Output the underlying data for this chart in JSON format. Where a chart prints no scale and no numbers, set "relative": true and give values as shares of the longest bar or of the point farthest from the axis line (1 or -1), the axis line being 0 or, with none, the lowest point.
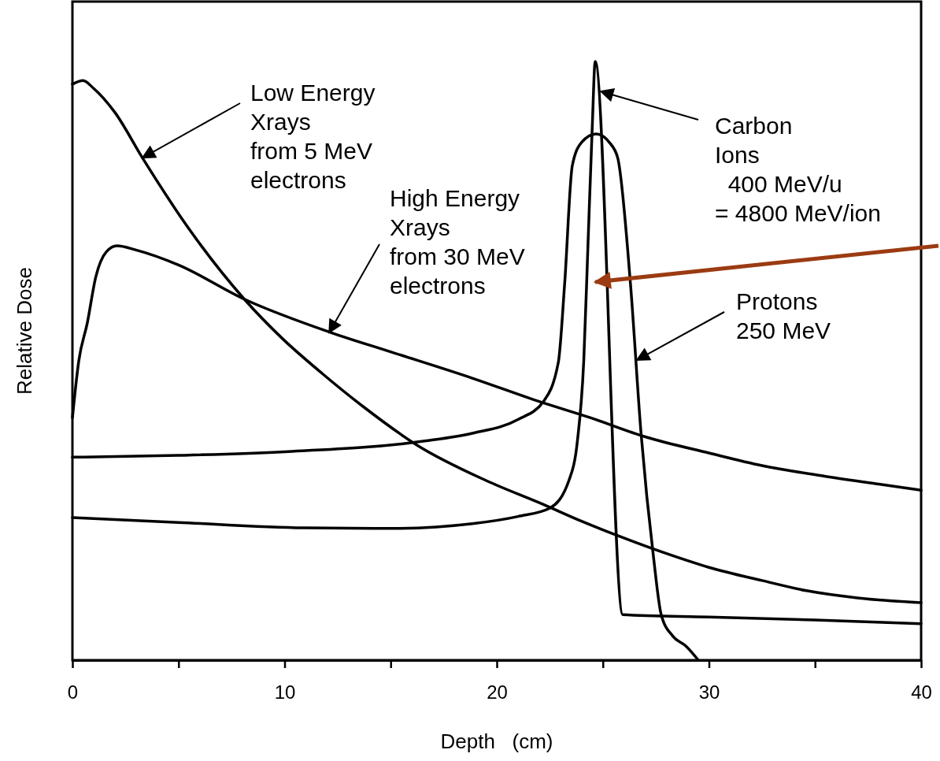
{
  "chart_data": {
    "type": "line",
    "relative": true,
    "xlabel": "Depth   (cm)",
    "ylabel": "Relative Dose",
    "xlim": [
      0,
      40
    ],
    "xticks": [
      0,
      {
        "value": 5,
        "label": null
      },
      10,
      {
        "value": 15,
        "label": null
      },
      20,
      {
        "value": 25,
        "label": null
      },
      30,
      {
        "value": 35,
        "label": null
      },
      40
    ],
    "marker": "none",
    "line_style": "solid",
    "series": [
      {
        "color": "#000000",
        "x": [
          0,
          0.5,
          1.0,
          2.0,
          3.3,
          5.5,
          8.1,
          9.9,
          11.8,
          13.65,
          16.25,
          19.5,
          22.2,
          24,
          25.7,
          28,
          30,
          32.5,
          34.6,
          37,
          40
        ],
        "values": [
          0.962,
          0.968,
          0.955,
          0.915,
          0.839,
          0.72,
          0.603,
          0.537,
          0.478,
          0.425,
          0.359,
          0.3,
          0.26,
          0.232,
          0.208,
          0.178,
          0.155,
          0.133,
          0.116,
          0.104,
          0.096
        ]
      },
      {
        "color": "#000000",
        "x": [
          0,
          0.3,
          0.7,
          1.1,
          1.6,
          2.1,
          3,
          5,
          8.1,
          12.2,
          15,
          18.85,
          22,
          24.4,
          27,
          30,
          32.5,
          35.5,
          38,
          40
        ],
        "values": [
          0.405,
          0.5,
          0.563,
          0.64,
          0.682,
          0.692,
          0.685,
          0.66,
          0.603,
          0.547,
          0.515,
          0.471,
          0.432,
          0.405,
          0.373,
          0.346,
          0.325,
          0.307,
          0.294,
          0.284
        ]
      },
      {
        "color": "#000000",
        "x": [
          0,
          5,
          10,
          16.6,
          18.85,
          21,
          22.2,
          22.9,
          23.2,
          23.56,
          24,
          24.68,
          25.3,
          25.7,
          26.3,
          26.8,
          27.4,
          27.75,
          28.3,
          28.9,
          29.5
        ],
        "values": [
          0.339,
          0.342,
          0.348,
          0.366,
          0.379,
          0.402,
          0.432,
          0.497,
          0.629,
          0.826,
          0.865,
          0.879,
          0.865,
          0.839,
          0.629,
          0.379,
          0.168,
          0.076,
          0.04,
          0.024,
          0
        ]
      },
      {
        "color": "#000000",
        "x": [
          0,
          5,
          10.9,
          15,
          18.85,
          21,
          22.5,
          23.4,
          23.8,
          24.1,
          24.3,
          24.5,
          24.64,
          25.94,
          30,
          35,
          40
        ],
        "values": [
          0.238,
          0.23,
          0.221,
          0.22,
          0.228,
          0.24,
          0.254,
          0.3,
          0.366,
          0.5,
          0.695,
          0.89,
          1.0,
          0.076,
          0.072,
          0.067,
          0.061
        ]
      }
    ],
    "annotations": [
      {
        "text": "Low Energy\nXrays\nfrom 5 MeV\nelectrons",
        "x": 3.3,
        "y": 0.839
      },
      {
        "text": "High Energy\nXrays\nfrom 30 MeV\nelectrons",
        "x": 12.1,
        "y": 0.547
      },
      {
        "text": "Carbon\nIons\n  400 MeV/u\n= 4800 MeV/ion",
        "x": 24.9,
        "y": 0.95
      },
      {
        "text": "Protons\n250 MeV",
        "x": 26.6,
        "y": 0.501
      }
    ]
  }
}
